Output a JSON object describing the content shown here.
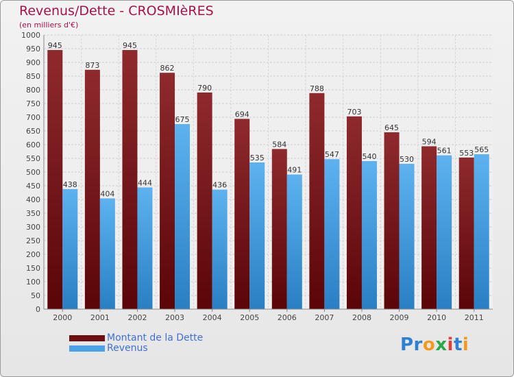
{
  "title": "Revenus/Dette - CROSMIèRES",
  "subtitle": "(en milliers d'€)",
  "logo": "Proxiti",
  "colors": {
    "title": "#a3124a",
    "dette": "#7d1a1e",
    "revenus": "#4aa3e6",
    "legend_text": "#3f6fd6"
  },
  "legend": [
    {
      "label": "Montant de la Dette",
      "color": "#6b0f12"
    },
    {
      "label": "Revenus",
      "color": "#4aa3e6"
    }
  ],
  "chart_data": {
    "type": "bar",
    "title": "Revenus/Dette - CROSMIèRES",
    "subtitle": "(en milliers d'€)",
    "categories": [
      "2000",
      "2001",
      "2002",
      "2003",
      "2004",
      "2005",
      "2006",
      "2007",
      "2008",
      "2009",
      "2010",
      "2011"
    ],
    "series": [
      {
        "name": "Montant de la Dette",
        "values": [
          945,
          873,
          945,
          862,
          790,
          694,
          584,
          788,
          703,
          645,
          594,
          553
        ]
      },
      {
        "name": "Revenus",
        "values": [
          438,
          404,
          444,
          675,
          436,
          535,
          491,
          547,
          540,
          530,
          561,
          565
        ]
      }
    ],
    "ylim": [
      0,
      1000
    ],
    "yticks": [
      0,
      50,
      100,
      150,
      200,
      250,
      300,
      350,
      400,
      450,
      500,
      550,
      600,
      650,
      700,
      750,
      800,
      850,
      900,
      950,
      1000
    ],
    "grid": true,
    "legend_position": "bottom-left"
  }
}
